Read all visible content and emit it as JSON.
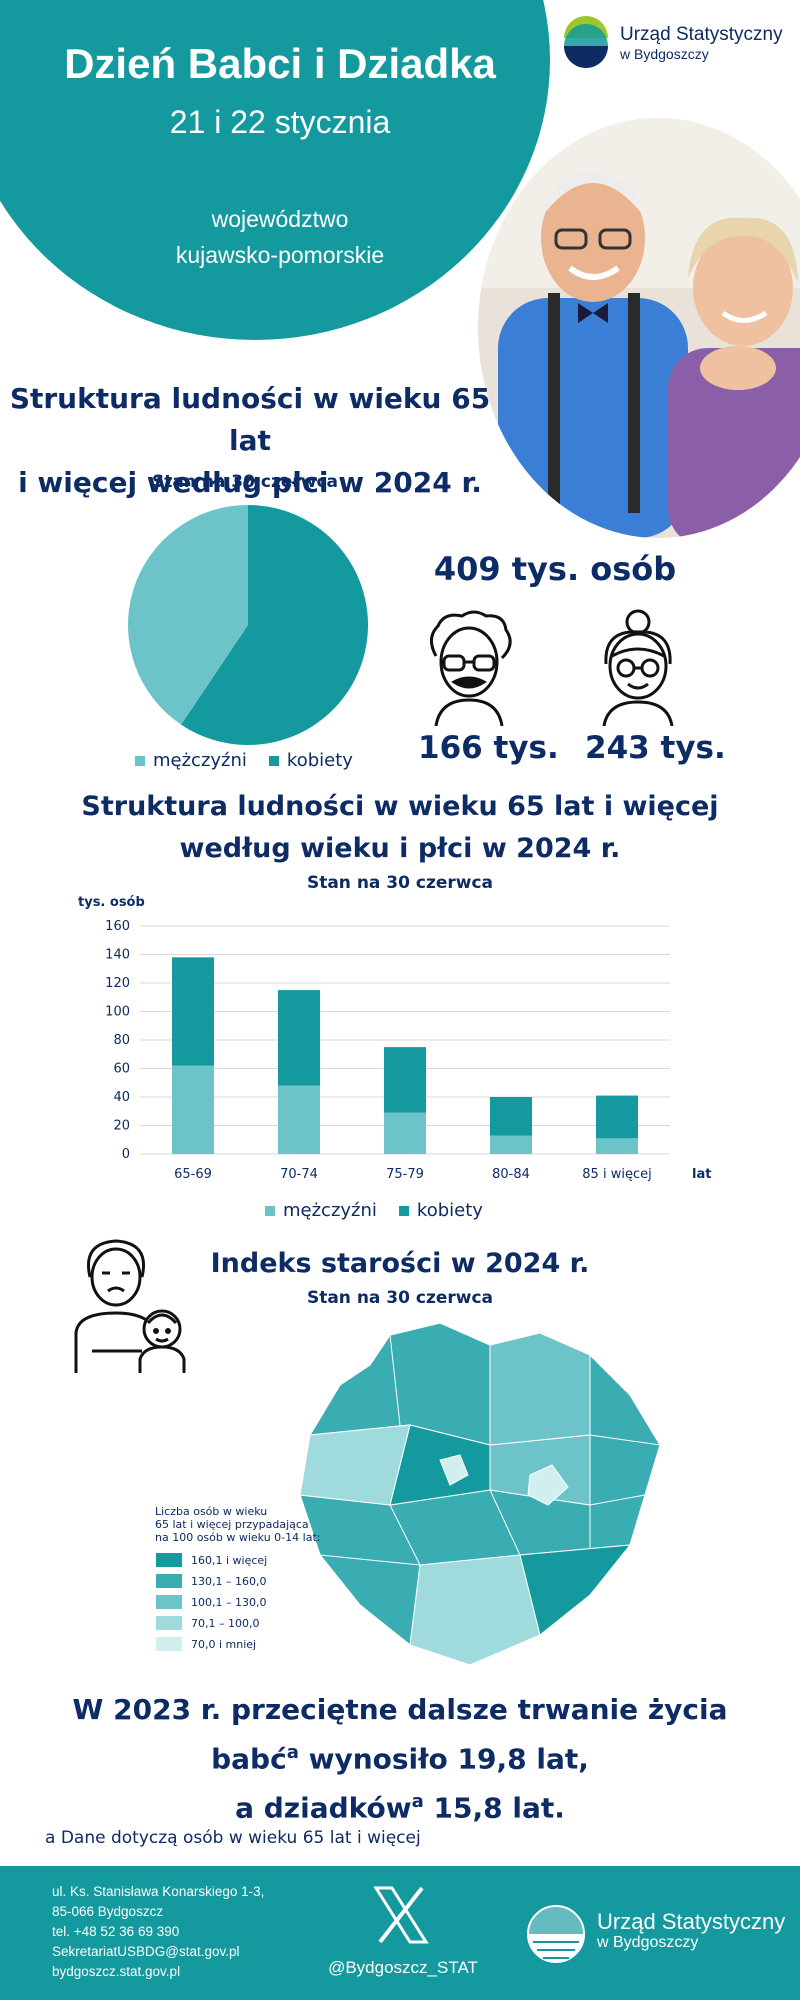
{
  "header": {
    "title": "Dzień Babci i Dziadka",
    "date": "21 i 22 stycznia",
    "region_line1": "województwo",
    "region_line2": "kujawsko-pomorskie"
  },
  "logo": {
    "name_line1": "Urząd Statystyczny",
    "name_line2": "w Bydgoszczy"
  },
  "colors": {
    "teal": "#13999e",
    "light_teal": "#6cc4c9",
    "navy": "#0d2b64"
  },
  "sex_structure": {
    "title_line1": "Struktura ludności w wieku 65 lat",
    "title_line2": "i więcej według płci w 2024 r.",
    "subtitle": "Stan na 30 czerwca",
    "total": "409 tys. osób",
    "men": "166 tys.",
    "women": "243 tys.",
    "grandpa_icon": "grandfather-icon",
    "grandma_icon": "grandmother-icon"
  },
  "age_structure": {
    "title_line1": "Struktura ludności w wieku 65 lat i więcej",
    "title_line2": "według wieku i płci w 2024 r.",
    "subtitle": "Stan na 30 czerwca"
  },
  "legend": {
    "men": "mężczyźni",
    "women": "kobiety"
  },
  "chart_data": [
    {
      "type": "pie",
      "labels": [
        "mężczyźni",
        "kobiety"
      ],
      "values": [
        166,
        243
      ],
      "colors": [
        "#6cc4c9",
        "#13999e"
      ]
    },
    {
      "type": "bar",
      "stacked": true,
      "categories": [
        "65-69",
        "70-74",
        "75-79",
        "80-84",
        "85 i więcej"
      ],
      "series": [
        {
          "name": "mężczyźni",
          "values": [
            62,
            48,
            29,
            13,
            11
          ],
          "color": "#6cc4c9"
        },
        {
          "name": "kobiety",
          "values": [
            76,
            67,
            46,
            27,
            30
          ],
          "color": "#13999e"
        }
      ],
      "ylabel": "tys. osób",
      "xlabel": "lat",
      "ylim": [
        0,
        160
      ],
      "yticks": [
        0,
        20,
        40,
        60,
        80,
        100,
        120,
        140,
        160
      ],
      "grid": true,
      "legend": "bottom"
    }
  ],
  "ageing_index": {
    "title": "Indeks starości w 2024 r.",
    "subtitle": "Stan na 30 czerwca",
    "legend_title_line1": "Liczba osób w wieku",
    "legend_title_line2": "65 lat i więcej przypadająca",
    "legend_title_line3": "na 100 osób w wieku 0-14 lat:",
    "legend_items": [
      {
        "label": "160,1 i więcej",
        "color": "#13999e"
      },
      {
        "label": "130,1 – 160,0",
        "color": "#3aadb2"
      },
      {
        "label": "100,1 – 130,0",
        "color": "#6cc4c9"
      },
      {
        "label": "70,1 – 100,0",
        "color": "#9fdadd"
      },
      {
        "label": "70,0 i mniej",
        "color": "#d2eff0"
      }
    ]
  },
  "life_expectancy": {
    "line1": "W 2023 r. przeciętne dalsze trwanie życia",
    "line2_a": "babć",
    "line2_sup": "a",
    "line2_b": " wynosiło 19,8 lat,",
    "line3_a": "a dziadków",
    "line3_sup": "a",
    "line3_b": " 15,8 lat."
  },
  "footnote": "a Dane dotyczą osób w wieku 65 lat i więcej",
  "footer": {
    "address1": "ul. Ks. Stanisława Konarskiego 1-3,",
    "address2": "85-066 Bydgoszcz",
    "phone": "tel. +48 52 36 69 390",
    "email": "SekretariatUSBDG@stat.gov.pl",
    "web": "bydgoszcz.stat.gov.pl",
    "social": "@Bydgoszcz_STAT",
    "logo_line1": "Urząd Statystyczny",
    "logo_line2": "w Bydgoszczy"
  }
}
